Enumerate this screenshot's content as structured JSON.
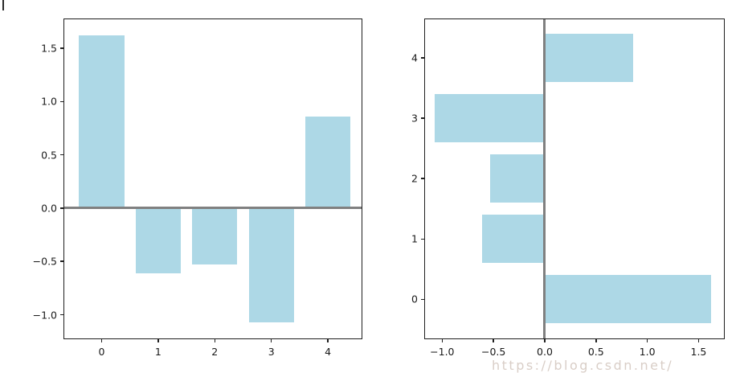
{
  "figure": {
    "background": "#ffffff",
    "bar_color": "#ADD8E6",
    "zero_line_color": "#808080",
    "spine_color": "#1f1f1f"
  },
  "watermark": {
    "text": "https://blog.csdn.net/"
  },
  "chart_data": [
    {
      "type": "bar",
      "orientation": "vertical",
      "title": "",
      "xlabel": "",
      "ylabel": "",
      "categories": [
        0,
        1,
        2,
        3,
        4
      ],
      "values": [
        1.62,
        -0.61,
        -0.53,
        -1.07,
        0.86
      ],
      "bar_width": 0.8,
      "bar_color": "#ADD8E6",
      "zero_line": {
        "axis": "y",
        "value": 0,
        "color": "#808080",
        "thickness": 3
      },
      "xlim": [
        -0.675,
        4.61
      ],
      "ylim": [
        -1.23,
        1.78
      ],
      "grid": false,
      "legend": null,
      "xticks": [
        {
          "v": 0,
          "label": "0"
        },
        {
          "v": 1,
          "label": "1"
        },
        {
          "v": 2,
          "label": "2"
        },
        {
          "v": 3,
          "label": "3"
        },
        {
          "v": 4,
          "label": "4"
        }
      ],
      "yticks": [
        {
          "v": -1.0,
          "label": "−1.0"
        },
        {
          "v": -0.5,
          "label": "−0.5"
        },
        {
          "v": 0.0,
          "label": "0.0"
        },
        {
          "v": 0.5,
          "label": "0.5"
        },
        {
          "v": 1.0,
          "label": "1.0"
        },
        {
          "v": 1.5,
          "label": "1.5"
        }
      ]
    },
    {
      "type": "bar",
      "orientation": "horizontal",
      "title": "",
      "xlabel": "",
      "ylabel": "",
      "categories": [
        0,
        1,
        2,
        3,
        4
      ],
      "values": [
        1.62,
        -0.61,
        -0.53,
        -1.07,
        0.86
      ],
      "bar_width": 0.8,
      "bar_color": "#ADD8E6",
      "zero_line": {
        "axis": "x",
        "value": 0,
        "color": "#808080",
        "thickness": 3
      },
      "xlim": [
        -1.175,
        1.755
      ],
      "ylim": [
        -0.66,
        4.65
      ],
      "grid": false,
      "legend": null,
      "xticks": [
        {
          "v": -1.0,
          "label": "−1.0"
        },
        {
          "v": -0.5,
          "label": "−0.5"
        },
        {
          "v": 0.0,
          "label": "0.0"
        },
        {
          "v": 0.5,
          "label": "0.5"
        },
        {
          "v": 1.0,
          "label": "1.0"
        },
        {
          "v": 1.5,
          "label": "1.5"
        }
      ],
      "yticks": [
        {
          "v": 0,
          "label": "0"
        },
        {
          "v": 1,
          "label": "1"
        },
        {
          "v": 2,
          "label": "2"
        },
        {
          "v": 3,
          "label": "3"
        },
        {
          "v": 4,
          "label": "4"
        }
      ]
    }
  ]
}
